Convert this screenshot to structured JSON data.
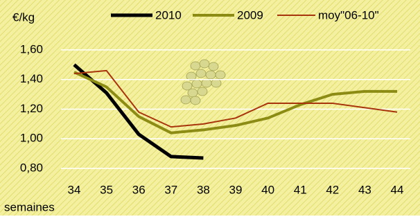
{
  "chart_data": {
    "type": "line",
    "y_label": "€/kg",
    "x_label": "semaines",
    "categories": [
      "34",
      "35",
      "36",
      "37",
      "38",
      "39",
      "40",
      "41",
      "42",
      "43",
      "44"
    ],
    "series": [
      {
        "name": "2010",
        "color": "#000000",
        "width": 5,
        "values": [
          1.5,
          1.31,
          1.03,
          0.88,
          0.87,
          null,
          null,
          null,
          null,
          null,
          null
        ]
      },
      {
        "name": "2009",
        "color": "#8c8c14",
        "width": 4,
        "values": [
          1.45,
          1.35,
          1.15,
          1.04,
          1.06,
          1.09,
          1.14,
          1.23,
          1.3,
          1.32,
          1.32
        ]
      },
      {
        "name": "moy\"06-10\"",
        "color": "#a8340c",
        "width": 2,
        "values": [
          1.44,
          1.46,
          1.18,
          1.08,
          1.1,
          1.14,
          1.24,
          1.24,
          1.24,
          1.21,
          1.18
        ]
      }
    ],
    "ylim": [
      0.8,
      1.6
    ],
    "yticks": [
      {
        "value": 0.8,
        "label": "0,80"
      },
      {
        "value": 1.0,
        "label": "1,00"
      },
      {
        "value": 1.2,
        "label": "1,20"
      },
      {
        "value": 1.4,
        "label": "1,40"
      },
      {
        "value": 1.6,
        "label": "1,60"
      }
    ],
    "grid": true
  }
}
